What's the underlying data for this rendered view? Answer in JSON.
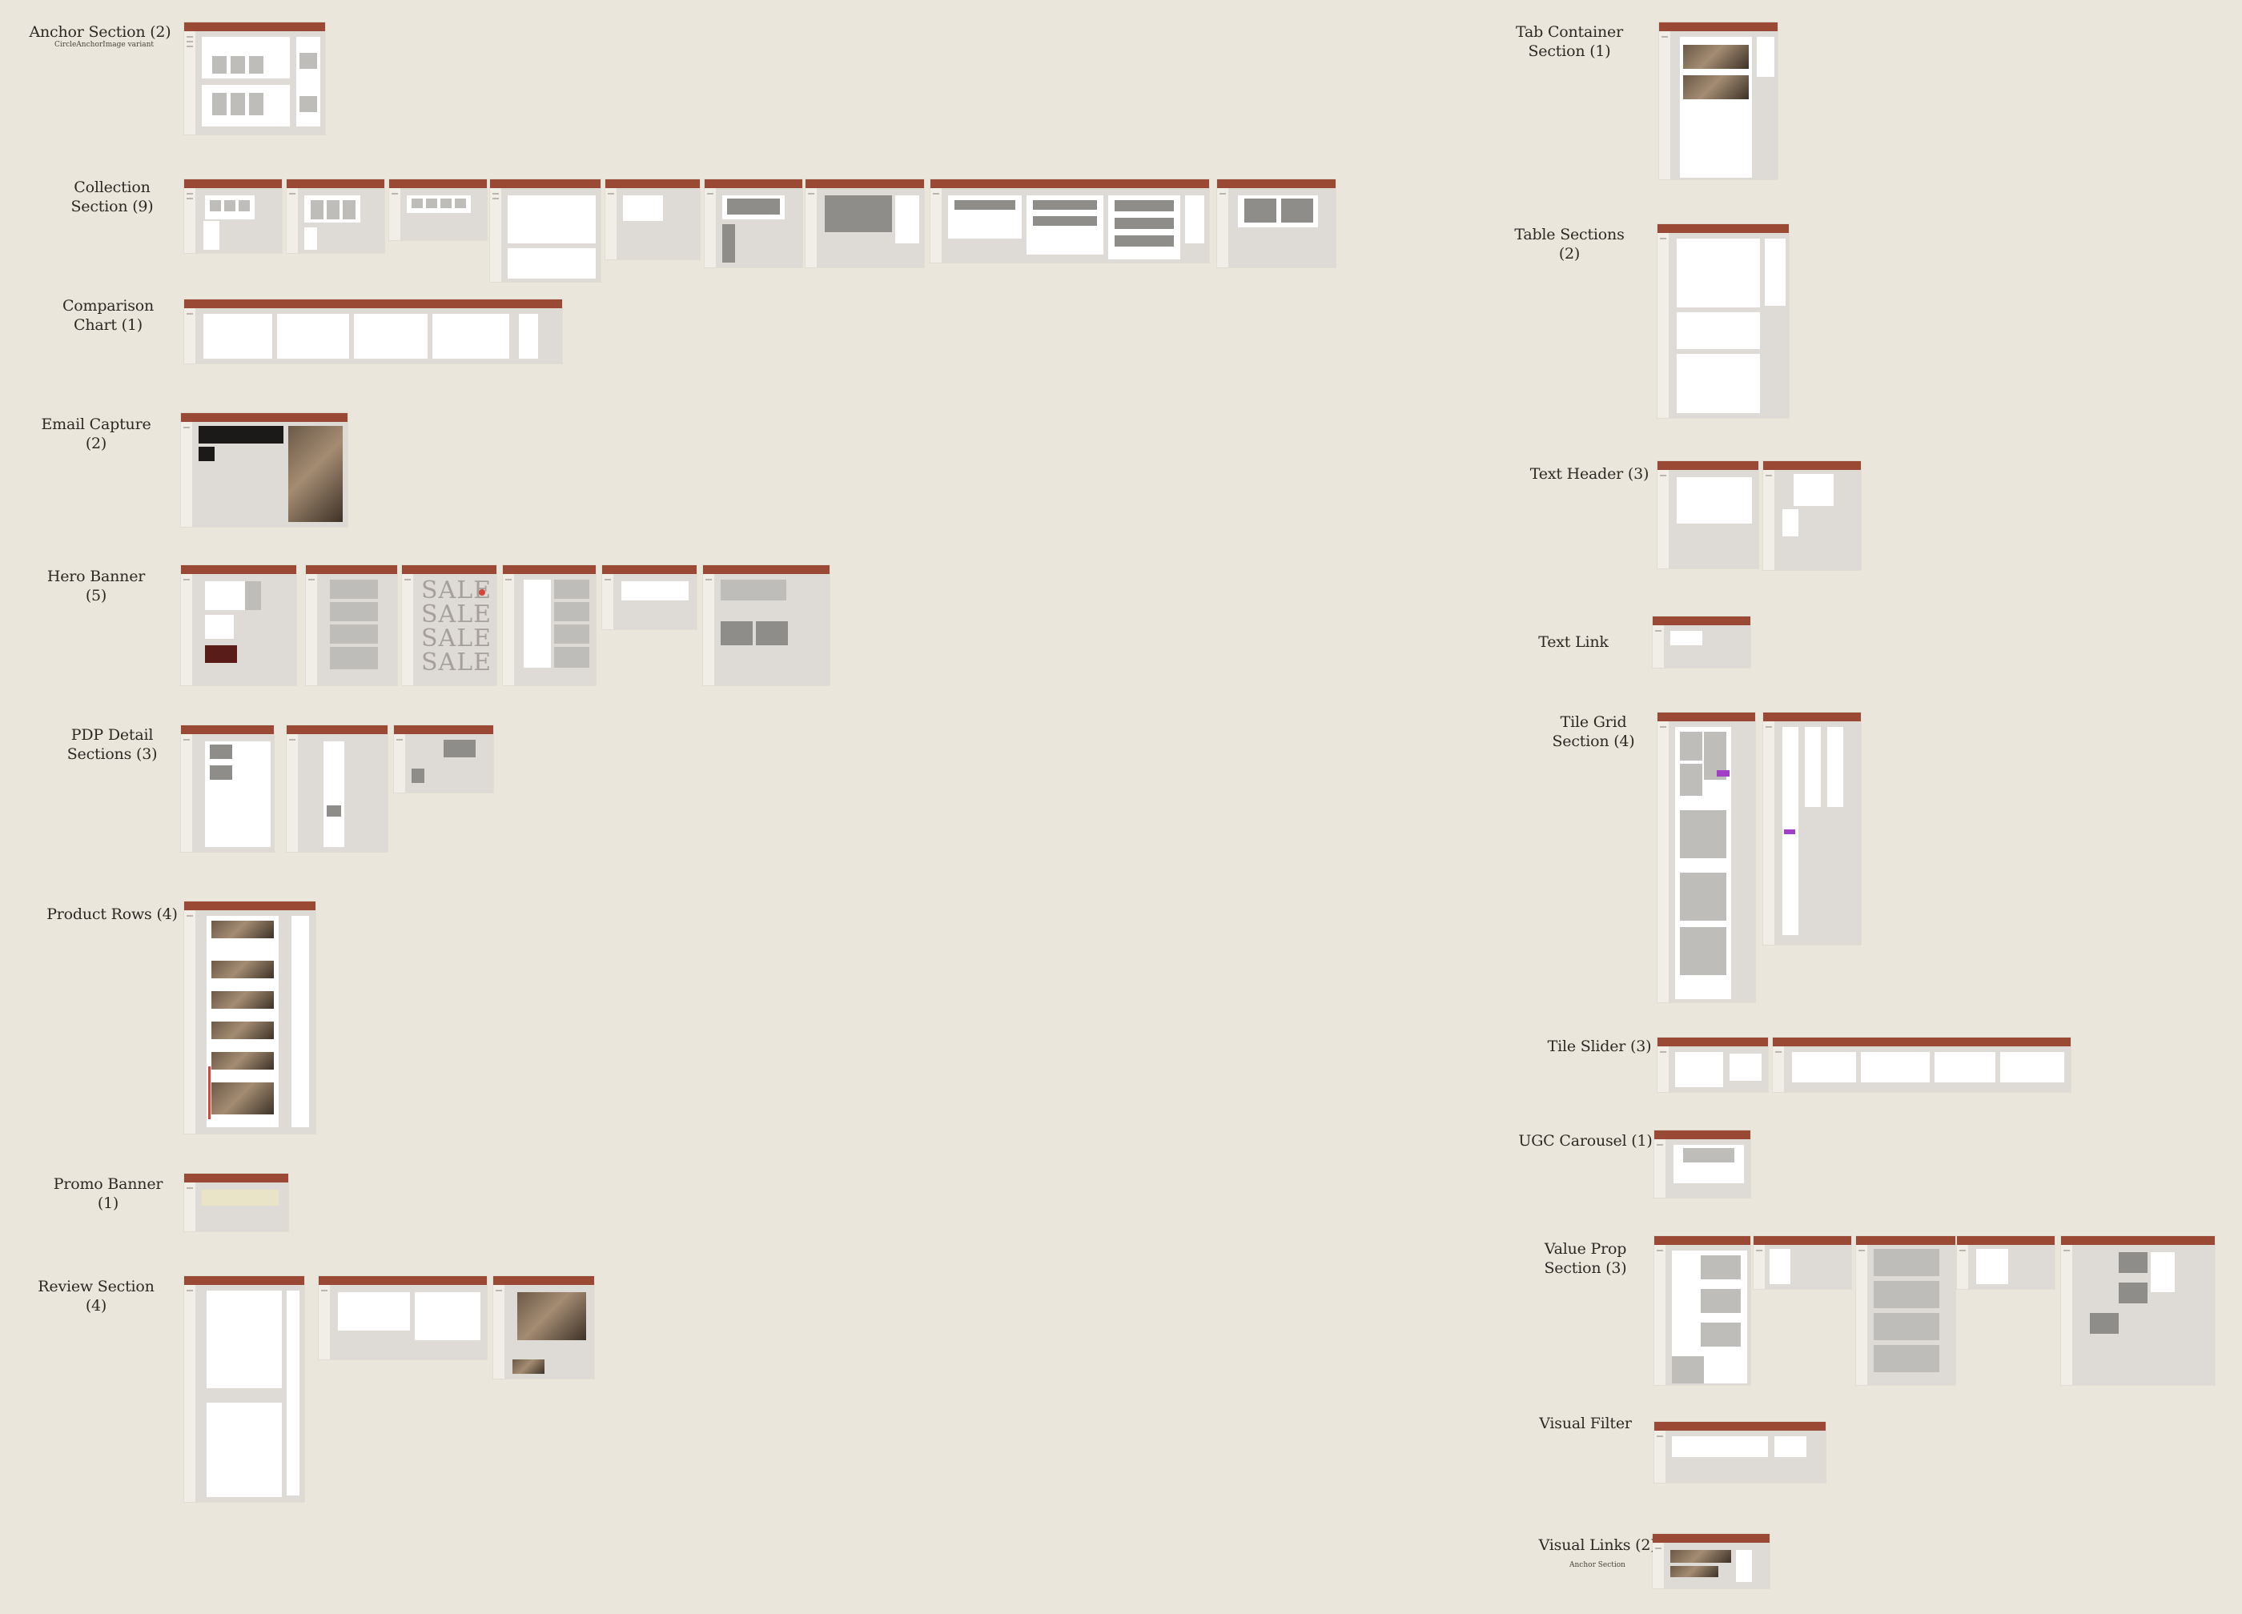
{
  "labels": {
    "anchor": "Anchor Section (2)",
    "anchor_sub": "CircleAnchorImage variant",
    "collection": "Collection\nSection (9)",
    "comparison": "Comparison\nChart (1)",
    "email": "Email Capture\n(2)",
    "hero": "Hero Banner (5)",
    "pdp": "PDP Detail\nSections (3)",
    "product": "Product Rows (4)",
    "promo": "Promo Banner (1)",
    "review": "Review Section\n(4)",
    "tab": "Tab Container\nSection (1)",
    "table": "Table Sections\n(2)",
    "textheader": "Text Header (3)",
    "textlink": "Text Link",
    "tilegrid": "Tile Grid\nSection (4)",
    "tileslider": "Tile Slider (3)",
    "ugc": "UGC Carousel (1)",
    "valueprop": "Value Prop\nSection (3)",
    "visualfilter": "Visual Filter",
    "visuallinks": "Visual Links (2)",
    "visuallinks_sub": "Anchor Section"
  },
  "sale_text": "SALE",
  "colors": {
    "canvas": "#ebe6dc",
    "frame_bar": "#9a4a34",
    "frame_body": "#dedbd6"
  }
}
